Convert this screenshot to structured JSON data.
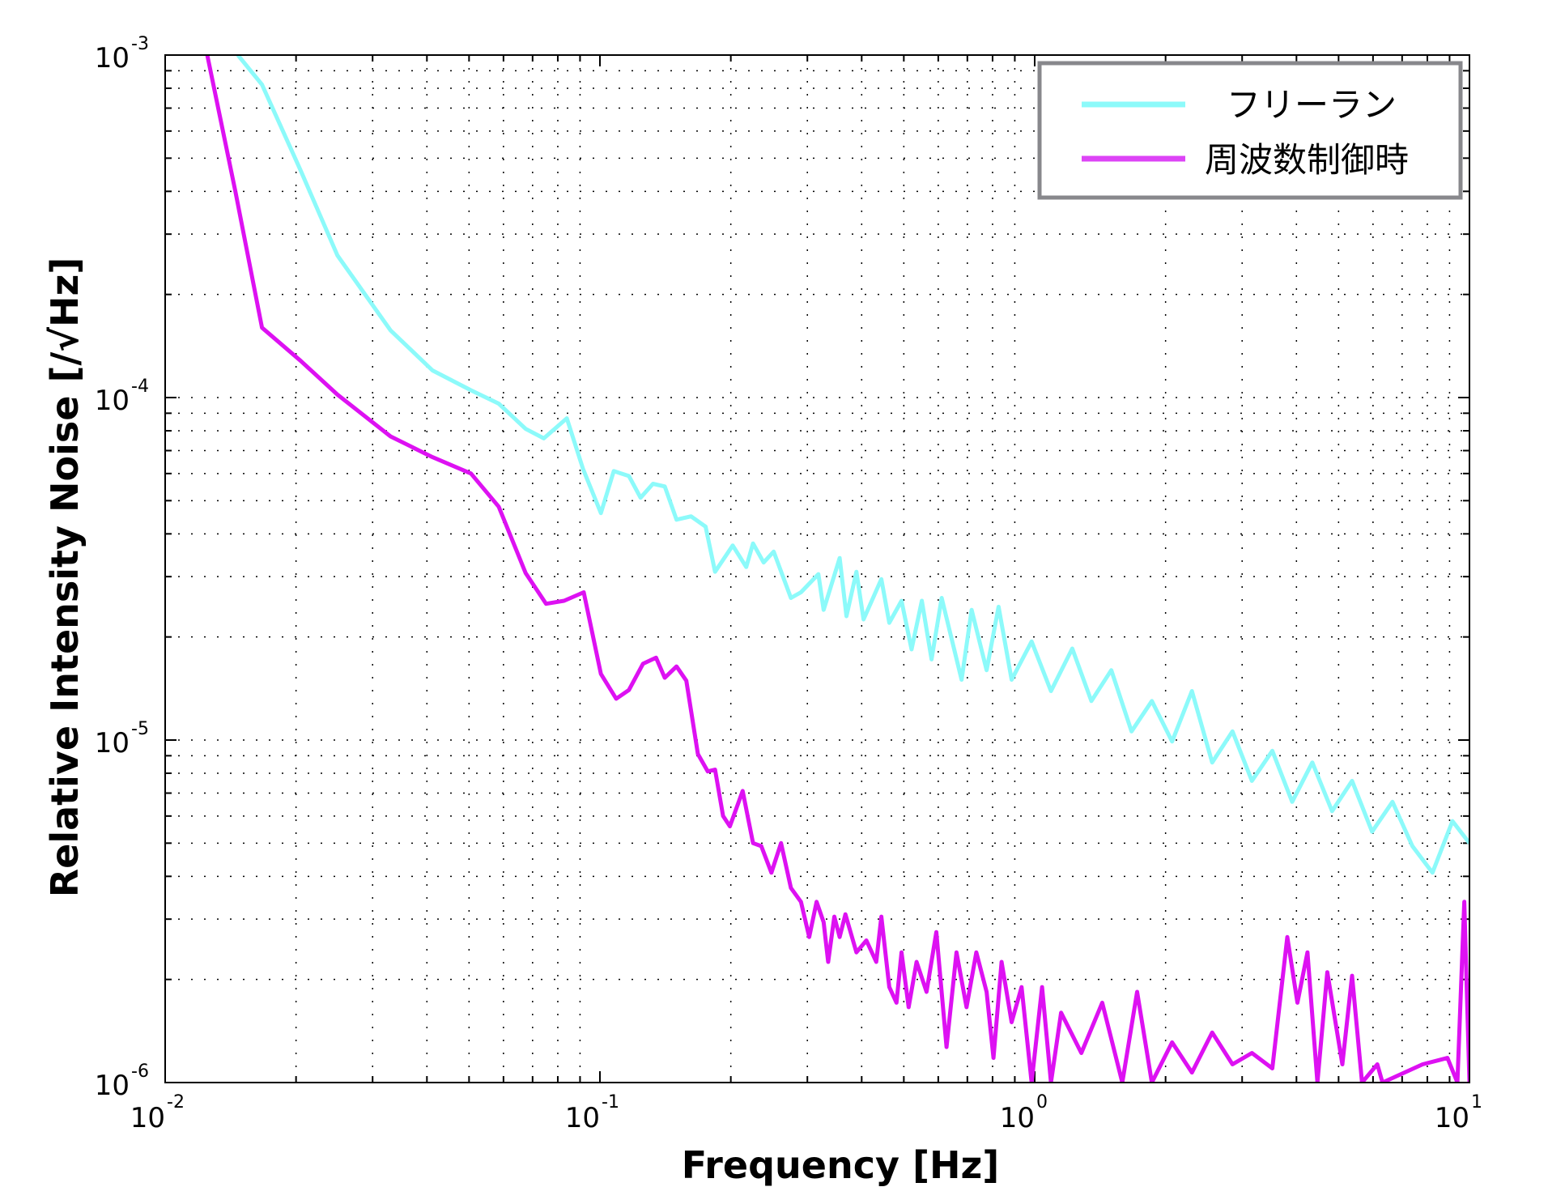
{
  "chart_data": {
    "type": "line",
    "title": "",
    "xlabel": "Frequency [Hz]",
    "ylabel": "Relative Intensity Noise  [/√Hz]",
    "xscale": "log",
    "yscale": "log",
    "xlim": [
      0.01,
      10
    ],
    "ylim": [
      1e-06,
      0.001
    ],
    "grid": true,
    "legend_position": "top-right",
    "x_ticks": [
      {
        "base": "10",
        "exp": "-2"
      },
      {
        "base": "10",
        "exp": "-1"
      },
      {
        "base": "10",
        "exp": "0"
      },
      {
        "base": "10",
        "exp": "1"
      }
    ],
    "y_ticks": [
      {
        "base": "10",
        "exp": "-6"
      },
      {
        "base": "10",
        "exp": "-5"
      },
      {
        "base": "10",
        "exp": "-4"
      },
      {
        "base": "10",
        "exp": "-3"
      }
    ],
    "series": [
      {
        "name": "フリーラン",
        "color": "#8cfafa",
        "x": [
          0.0147,
          0.0167,
          0.0205,
          0.0249,
          0.033,
          0.0412,
          0.0505,
          0.0585,
          0.0675,
          0.0743,
          0.0839,
          0.0914,
          0.1005,
          0.1076,
          0.1166,
          0.124,
          0.1324,
          0.141,
          0.15,
          0.162,
          0.175,
          0.184,
          0.202,
          0.217,
          0.225,
          0.238,
          0.251,
          0.275,
          0.29,
          0.318,
          0.327,
          0.356,
          0.369,
          0.389,
          0.404,
          0.444,
          0.463,
          0.494,
          0.521,
          0.55,
          0.579,
          0.611,
          0.679,
          0.716,
          0.775,
          0.826,
          0.885,
          0.984,
          1.09,
          1.22,
          1.35,
          1.5,
          1.67,
          1.86,
          2.07,
          2.3,
          2.56,
          2.85,
          3.16,
          3.52,
          3.91,
          4.35,
          4.83,
          5.37,
          5.97,
          6.65,
          7.39,
          8.22,
          9.14,
          10
        ],
        "y": [
          0.001,
          0.00082,
          0.00046,
          0.00026,
          0.000157,
          0.00012,
          0.000105,
          9.6e-05,
          8.1e-05,
          7.6e-05,
          8.7e-05,
          6.2e-05,
          4.6e-05,
          6.1e-05,
          5.9e-05,
          5.1e-05,
          5.6e-05,
          5.5e-05,
          4.4e-05,
          4.5e-05,
          4.2e-05,
          3.1e-05,
          3.7e-05,
          3.2e-05,
          3.75e-05,
          3.3e-05,
          3.55e-05,
          2.6e-05,
          2.7e-05,
          3.05e-05,
          2.4e-05,
          3.4e-05,
          2.3e-05,
          3.1e-05,
          2.25e-05,
          2.95e-05,
          2.2e-05,
          2.55e-05,
          1.84e-05,
          2.55e-05,
          1.72e-05,
          2.6e-05,
          1.5e-05,
          2.4e-05,
          1.6e-05,
          2.45e-05,
          1.5e-05,
          1.94e-05,
          1.39e-05,
          1.85e-05,
          1.3e-05,
          1.6e-05,
          1.06e-05,
          1.3e-05,
          9.9e-06,
          1.39e-05,
          8.6e-06,
          1.06e-05,
          7.6e-06,
          9.3e-06,
          6.6e-06,
          8.6e-06,
          6.2e-06,
          7.6e-06,
          5.4e-06,
          6.6e-06,
          4.9e-06,
          4.1e-06,
          5.8e-06,
          5e-06
        ]
      },
      {
        "name": "周波数制御時",
        "color": "#dd11f2",
        "x": [
          0.0125,
          0.0145,
          0.0167,
          0.0205,
          0.0249,
          0.033,
          0.0412,
          0.0505,
          0.0585,
          0.0675,
          0.0752,
          0.0827,
          0.0918,
          0.1005,
          0.109,
          0.1166,
          0.1256,
          0.1346,
          0.141,
          0.15,
          0.158,
          0.168,
          0.177,
          0.184,
          0.192,
          0.199,
          0.213,
          0.225,
          0.235,
          0.248,
          0.261,
          0.275,
          0.29,
          0.303,
          0.315,
          0.327,
          0.335,
          0.346,
          0.356,
          0.367,
          0.389,
          0.41,
          0.432,
          0.444,
          0.463,
          0.481,
          0.494,
          0.513,
          0.535,
          0.564,
          0.594,
          0.627,
          0.661,
          0.697,
          0.734,
          0.775,
          0.804,
          0.839,
          0.885,
          0.933,
          0.984,
          1.04,
          1.09,
          1.15,
          1.28,
          1.43,
          1.59,
          1.72,
          1.86,
          2.07,
          2.3,
          2.56,
          2.85,
          3.16,
          3.52,
          3.81,
          4.02,
          4.24,
          4.47,
          4.71,
          5.1,
          5.37,
          5.66,
          6.14,
          6.31,
          7.8,
          8.9,
          9.38,
          9.73,
          10
        ],
        "y": [
          0.001,
          0.0004,
          0.00016,
          0.000128,
          0.000102,
          7.7e-05,
          6.7e-05,
          6e-05,
          4.8e-05,
          3.07e-05,
          2.5e-05,
          2.55e-05,
          2.7e-05,
          1.56e-05,
          1.32e-05,
          1.4e-05,
          1.67e-05,
          1.74e-05,
          1.52e-05,
          1.64e-05,
          1.49e-05,
          9.1e-06,
          8.1e-06,
          8.2e-06,
          6e-06,
          5.6e-06,
          7.1e-06,
          5e-06,
          4.9e-06,
          4.1e-06,
          5e-06,
          3.7e-06,
          3.37e-06,
          2.66e-06,
          3.37e-06,
          2.94e-06,
          2.25e-06,
          3.05e-06,
          2.66e-06,
          3.1e-06,
          2.4e-06,
          2.6e-06,
          2.25e-06,
          3.05e-06,
          1.9e-06,
          1.71e-06,
          2.4e-06,
          1.66e-06,
          2.25e-06,
          1.84e-06,
          2.75e-06,
          1.27e-06,
          2.4e-06,
          1.66e-06,
          2.4e-06,
          1.84e-06,
          1.18e-06,
          2.25e-06,
          1.5e-06,
          1.9e-06,
          1e-06,
          1.9e-06,
          1e-06,
          1.6e-06,
          1.22e-06,
          1.71e-06,
          1e-06,
          1.84e-06,
          1e-06,
          1.31e-06,
          1.07e-06,
          1.4e-06,
          1.13e-06,
          1.22e-06,
          1.1e-06,
          2.66e-06,
          1.71e-06,
          2.4e-06,
          1e-06,
          2.1e-06,
          1.13e-06,
          2.05e-06,
          1e-06,
          1.13e-06,
          1e-06,
          1.13e-06,
          1.18e-06,
          1e-06,
          3.37e-06,
          1e-06
        ]
      }
    ]
  }
}
